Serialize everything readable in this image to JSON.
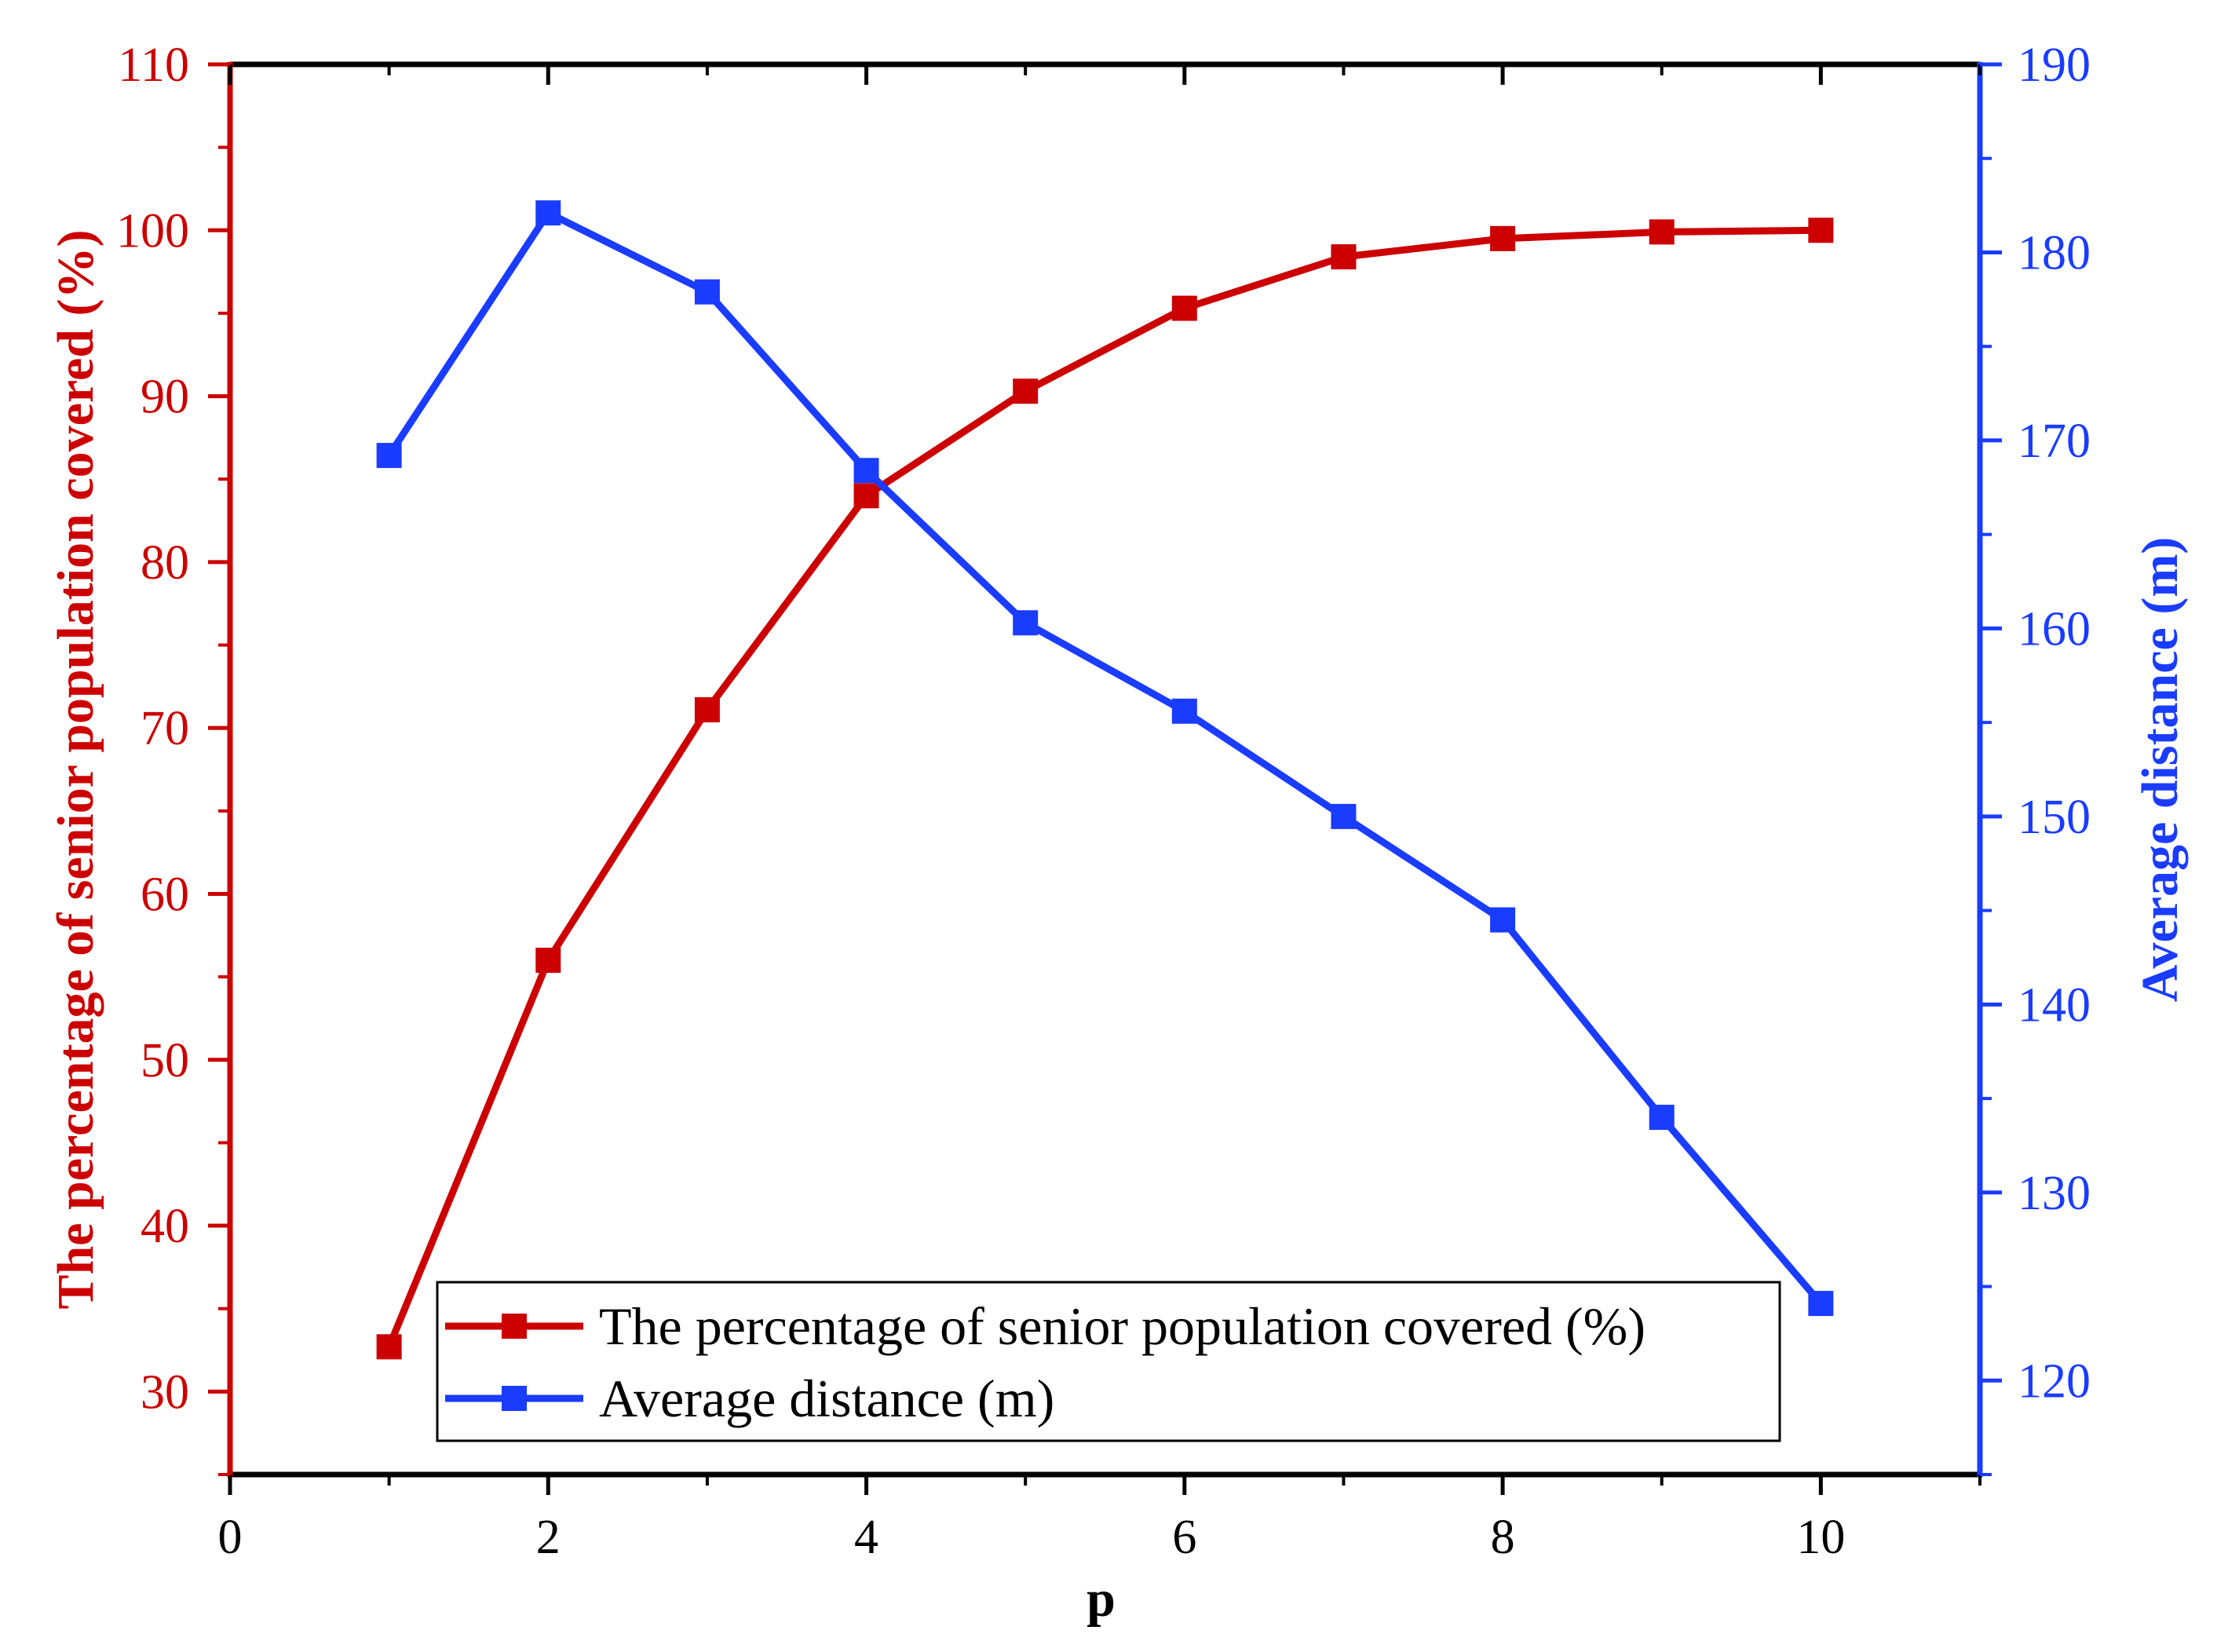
{
  "chart_data": {
    "type": "line",
    "title": "",
    "xlabel": "p",
    "x": [
      1,
      2,
      3,
      4,
      5,
      6,
      7,
      8,
      9,
      10
    ],
    "xlim": [
      0,
      11
    ],
    "xticks": [
      0,
      2,
      4,
      6,
      8,
      10
    ],
    "x_tick_labels": [
      "0",
      "2",
      "4",
      "6",
      "8",
      "10"
    ],
    "y_left": {
      "label": "The percentage of senior population covered (%)",
      "ylim": [
        25,
        110
      ],
      "ticks": [
        30,
        40,
        50,
        60,
        70,
        80,
        90,
        100,
        110
      ],
      "tick_labels": [
        "30",
        "40",
        "50",
        "60",
        "70",
        "80",
        "90",
        "100",
        "110"
      ],
      "color": "#cc0000"
    },
    "y_right": {
      "label": "Average distance (m)",
      "ylim": [
        115,
        190
      ],
      "ticks": [
        120,
        130,
        140,
        150,
        160,
        170,
        180,
        190
      ],
      "tick_labels": [
        "120",
        "130",
        "140",
        "150",
        "160",
        "170",
        "180",
        "190"
      ],
      "color": "#1a3cff"
    },
    "series": [
      {
        "name": "The percentage of senior population covered (%)",
        "axis": "left",
        "color": "#cc0000",
        "marker": "square",
        "values": [
          32.7,
          56.0,
          71.1,
          84.0,
          90.3,
          95.3,
          98.4,
          99.5,
          99.9,
          100.0
        ]
      },
      {
        "name": "Average distance (m)",
        "axis": "right",
        "color": "#1a3cff",
        "marker": "square",
        "values": [
          169.2,
          182.1,
          177.9,
          168.4,
          160.3,
          155.6,
          150.0,
          144.5,
          134.0,
          124.1
        ]
      }
    ],
    "legend": {
      "position": "bottom-center",
      "entries": [
        "The percentage of senior population covered (%)",
        "Average distance (m)"
      ]
    },
    "grid": false
  }
}
